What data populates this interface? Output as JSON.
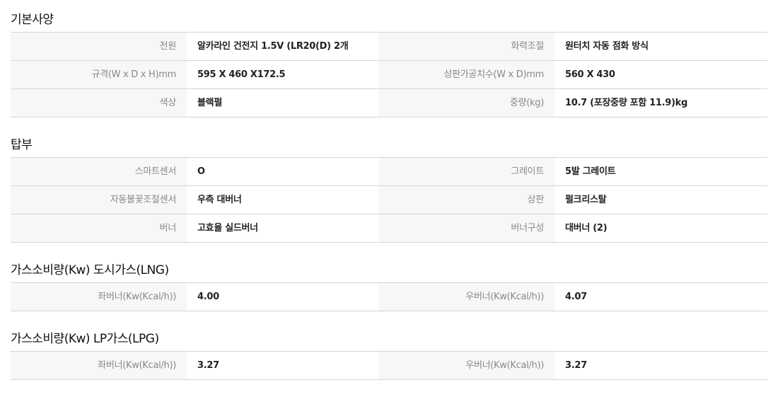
{
  "sections": [
    {
      "title": "기본사양",
      "rows": [
        [
          {
            "label": "전원",
            "value": "알카라인 건전지 1.5V (LR20(D) 2개"
          },
          {
            "label": "화력조절",
            "value": "원터치 자동 점화 방식"
          }
        ],
        [
          {
            "label": "규격(W x D x H)mm",
            "value": "595 X 460 X172.5"
          },
          {
            "label": "상판가공치수(W x D)mm",
            "value": "560 X 430"
          }
        ],
        [
          {
            "label": "색상",
            "value": "블랙펄"
          },
          {
            "label": "중량(kg)",
            "value": "10.7 (포장중량 포함 11.9)kg"
          }
        ]
      ]
    },
    {
      "title": "탑부",
      "rows": [
        [
          {
            "label": "스마트센서",
            "value": "O"
          },
          {
            "label": "그레이트",
            "value": "5발 그레이트"
          }
        ],
        [
          {
            "label": "자동불꽃조절센서",
            "value": "우측 대버너"
          },
          {
            "label": "상판",
            "value": "펄크리스탈"
          }
        ],
        [
          {
            "label": "버너",
            "value": "고효율 실드버너"
          },
          {
            "label": "버너구성",
            "value": "대버너 (2)"
          }
        ]
      ]
    },
    {
      "title": "가스소비량(Kw) 도시가스(LNG)",
      "rows": [
        [
          {
            "label": "좌버너(Kw(Kcal/h))",
            "value": "4.00"
          },
          {
            "label": "우버너(Kw(Kcal/h))",
            "value": "4.07"
          }
        ]
      ]
    },
    {
      "title": "가스소비량(Kw) LP가스(LPG)",
      "rows": [
        [
          {
            "label": "좌버너(Kw(Kcal/h))",
            "value": "3.27"
          },
          {
            "label": "우버너(Kw(Kcal/h))",
            "value": "3.27"
          }
        ]
      ]
    }
  ]
}
